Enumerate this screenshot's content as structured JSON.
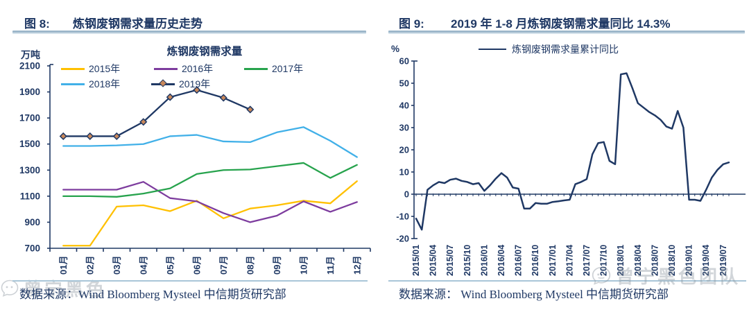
{
  "colors": {
    "text_navy": "#1F3864",
    "header_bar": "#9DB7CA",
    "footer_line": "#A9C6D8",
    "watermark_gray": "#8C96A0"
  },
  "left_panel": {
    "fig_label": "图 8:",
    "title": "炼钢废钢需求量历史走势",
    "unit": "万吨",
    "source": "数据来源：Wind Bloomberg Mysteel 中信期货研究部"
  },
  "right_panel": {
    "fig_label": "图 9:",
    "title": "2019 年 1-8 月炼钢废钢需求量同比 14.3%",
    "unit": "%",
    "source": "数据来源： Wind Bloomberg Mysteel 中信期货研究部"
  },
  "watermark": {
    "text": "曾宁黑色团队"
  },
  "chart_data": [
    {
      "type": "line",
      "title": "炼钢废钢需求量",
      "ylabel": "万吨",
      "ylim": [
        700,
        2100
      ],
      "yticks": [
        700,
        900,
        1100,
        1300,
        1500,
        1700,
        1900,
        2100
      ],
      "grid": false,
      "legend_position": "top",
      "categories": [
        "01月",
        "02月",
        "03月",
        "04月",
        "05月",
        "06月",
        "07月",
        "08月",
        "09月",
        "10月",
        "11月",
        "12月"
      ],
      "series": [
        {
          "name": "2015年",
          "color": "#FFC000",
          "values": [
            720,
            720,
            1020,
            1030,
            985,
            1065,
            930,
            1005,
            1030,
            1065,
            1045,
            1215
          ]
        },
        {
          "name": "2016年",
          "color": "#7D3C9E",
          "values": [
            1150,
            1150,
            1150,
            1210,
            1085,
            1060,
            970,
            900,
            950,
            1060,
            980,
            1055
          ]
        },
        {
          "name": "2017年",
          "color": "#27A34D",
          "values": [
            1100,
            1100,
            1095,
            1120,
            1160,
            1270,
            1300,
            1305,
            1330,
            1355,
            1240,
            1340
          ]
        },
        {
          "name": "2018年",
          "color": "#41B0E8",
          "values": [
            1485,
            1485,
            1490,
            1500,
            1560,
            1570,
            1520,
            1515,
            1590,
            1630,
            1525,
            1400
          ]
        },
        {
          "name": "2019年",
          "color": "#1F3864",
          "marker": "diamond",
          "marker_fill": "#C9885A",
          "values": [
            1560,
            1560,
            1560,
            1670,
            1860,
            1915,
            1855,
            1765
          ]
        }
      ]
    },
    {
      "type": "line",
      "title": "",
      "ylabel": "%",
      "ylim": [
        -20,
        60
      ],
      "yticks": [
        -20,
        -10,
        0,
        10,
        20,
        30,
        40,
        50,
        60
      ],
      "grid": false,
      "x_axis_at_zero": true,
      "xtick_label_every": 3,
      "legend_position": "top",
      "x": [
        "2015/01",
        "2015/02",
        "2015/03",
        "2015/04",
        "2015/05",
        "2015/06",
        "2015/07",
        "2015/08",
        "2015/09",
        "2015/10",
        "2015/11",
        "2015/12",
        "2016/01",
        "2016/02",
        "2016/03",
        "2016/04",
        "2016/05",
        "2016/06",
        "2016/07",
        "2016/08",
        "2016/09",
        "2016/10",
        "2016/11",
        "2016/12",
        "2017/01",
        "2017/02",
        "2017/03",
        "2017/04",
        "2017/05",
        "2017/06",
        "2017/07",
        "2017/08",
        "2017/09",
        "2017/10",
        "2017/11",
        "2017/12",
        "2018/01",
        "2018/02",
        "2018/03",
        "2018/04",
        "2018/05",
        "2018/06",
        "2018/07",
        "2018/08",
        "2018/09",
        "2018/10",
        "2018/11",
        "2018/12",
        "2019/01",
        "2019/02",
        "2019/03",
        "2019/04",
        "2019/05",
        "2019/06",
        "2019/07",
        "2019/08"
      ],
      "series": [
        {
          "name": "炼钢废钢需求量累计同比",
          "color": "#1F3864",
          "values": [
            -11,
            -16,
            2,
            4,
            5.5,
            5,
            6.5,
            7,
            6,
            5.5,
            4.5,
            5,
            1.5,
            4,
            7,
            9.5,
            7.5,
            3,
            2.5,
            -6.5,
            -6.5,
            -4,
            -4.3,
            -4.3,
            -3.5,
            -3.2,
            -2.8,
            -2.5,
            4.5,
            5.5,
            6.8,
            18,
            23,
            23.5,
            15,
            13.5,
            54,
            54.5,
            48,
            41,
            39,
            37,
            35.5,
            33.5,
            30.5,
            29.5,
            37.5,
            30,
            -2.5,
            -2.5,
            -3,
            2,
            7.5,
            11,
            13.5,
            14.3
          ]
        }
      ]
    }
  ]
}
